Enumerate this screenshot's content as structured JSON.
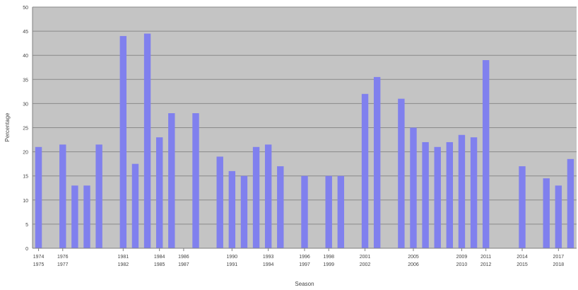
{
  "colors": {
    "plot_background": "#c4c4c4",
    "gridline": "#8a8a8a",
    "bar": "#8080ee",
    "axis_text": "#444444"
  },
  "chart_data": {
    "type": "bar",
    "ylabel": "Percentage",
    "xlabel": "Season",
    "ylim": [
      0,
      50
    ],
    "ytick_step": 5,
    "grid": true,
    "legend": "none",
    "x_tick_labels": [
      {
        "label": [
          "1974",
          "1975"
        ],
        "year": 1974
      },
      {
        "label": [
          "1976",
          "1977"
        ],
        "year": 1976
      },
      {
        "label": [
          "1981",
          "1982"
        ],
        "year": 1981
      },
      {
        "label": [
          "1984",
          "1985"
        ],
        "year": 1984
      },
      {
        "label": [
          "1986",
          "1987"
        ],
        "year": 1986
      },
      {
        "label": [
          "1990",
          "1991"
        ],
        "year": 1990
      },
      {
        "label": [
          "1993",
          "1994"
        ],
        "year": 1993
      },
      {
        "label": [
          "1996",
          "1997"
        ],
        "year": 1996
      },
      {
        "label": [
          "1998",
          "1999"
        ],
        "year": 1998
      },
      {
        "label": [
          "2001",
          "2002"
        ],
        "year": 2001
      },
      {
        "label": [
          "2005",
          "2006"
        ],
        "year": 2005
      },
      {
        "label": [
          "2009",
          "2010"
        ],
        "year": 2009
      },
      {
        "label": [
          "2011",
          "2012"
        ],
        "year": 2011
      },
      {
        "label": [
          "2014",
          "2015"
        ],
        "year": 2014
      },
      {
        "label": [
          "2017",
          "2018"
        ],
        "year": 2017
      }
    ],
    "year_range": [
      1974,
      2018
    ],
    "bars": [
      {
        "year": 1974,
        "value": 21
      },
      {
        "year": 1976,
        "value": 21.5
      },
      {
        "year": 1977,
        "value": 13
      },
      {
        "year": 1978,
        "value": 13
      },
      {
        "year": 1979,
        "value": 21.5
      },
      {
        "year": 1981,
        "value": 44
      },
      {
        "year": 1982,
        "value": 17.5
      },
      {
        "year": 1983,
        "value": 44.5
      },
      {
        "year": 1984,
        "value": 23
      },
      {
        "year": 1985,
        "value": 28
      },
      {
        "year": 1987,
        "value": 28
      },
      {
        "year": 1989,
        "value": 19
      },
      {
        "year": 1990,
        "value": 16
      },
      {
        "year": 1991,
        "value": 15
      },
      {
        "year": 1992,
        "value": 21
      },
      {
        "year": 1993,
        "value": 21.5
      },
      {
        "year": 1994,
        "value": 17
      },
      {
        "year": 1996,
        "value": 15
      },
      {
        "year": 1998,
        "value": 15
      },
      {
        "year": 1999,
        "value": 15
      },
      {
        "year": 2001,
        "value": 32
      },
      {
        "year": 2002,
        "value": 35.5
      },
      {
        "year": 2004,
        "value": 31
      },
      {
        "year": 2005,
        "value": 25
      },
      {
        "year": 2006,
        "value": 22
      },
      {
        "year": 2007,
        "value": 21
      },
      {
        "year": 2008,
        "value": 22
      },
      {
        "year": 2009,
        "value": 23.5
      },
      {
        "year": 2010,
        "value": 23
      },
      {
        "year": 2011,
        "value": 39
      },
      {
        "year": 2014,
        "value": 17
      },
      {
        "year": 2016,
        "value": 14.5
      },
      {
        "year": 2017,
        "value": 13
      },
      {
        "year": 2018,
        "value": 18.5
      }
    ]
  }
}
